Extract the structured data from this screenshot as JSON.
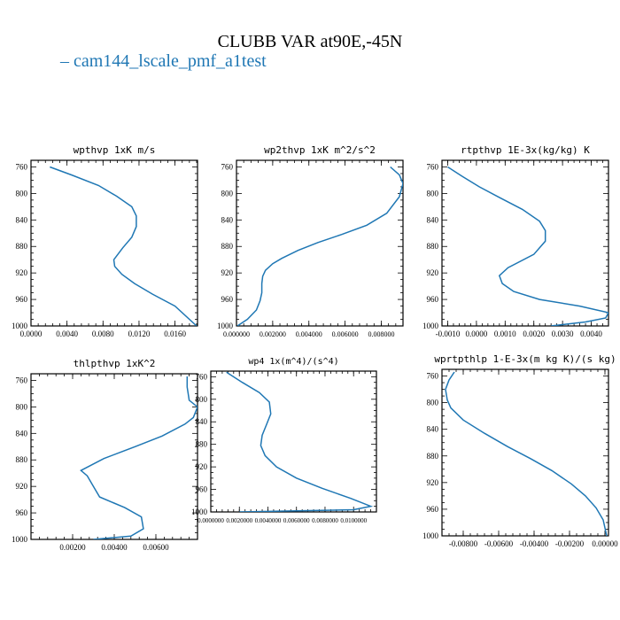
{
  "figure": {
    "title": "CLUBB VAR at90E,-45N",
    "line_color": "#1f77b4",
    "legend": {
      "dash": "–",
      "label": "cam144_lscale_pmf_a1test"
    }
  },
  "chart_data": [
    {
      "type": "line",
      "title": "wpthvp   1xK m/s",
      "xlim": [
        0,
        0.0185
      ],
      "ylim": [
        1000,
        750
      ],
      "xticks": [
        0,
        0.004,
        0.008,
        0.012,
        0.016
      ],
      "xticklabels": [
        "0.0000",
        "0.0040",
        "0.0080",
        "0.0120",
        "0.0160"
      ],
      "yticks": [
        760,
        800,
        840,
        880,
        920,
        960,
        1000
      ],
      "yticklabels": [
        "760",
        "800",
        "840",
        "880",
        "920",
        "960",
        "1000"
      ],
      "series": [
        {
          "x": [
            0.0021,
            0.0045,
            0.0075,
            0.0095,
            0.0112,
            0.0117,
            0.0117,
            0.0112,
            0.0102,
            0.0092,
            0.0093,
            0.0101,
            0.0115,
            0.0135,
            0.016,
            0.0184
          ],
          "y": [
            760,
            772,
            788,
            804,
            820,
            834,
            850,
            866,
            882,
            900,
            910,
            922,
            936,
            952,
            970,
            1000
          ]
        }
      ]
    },
    {
      "type": "line",
      "title": "wp2thvp   1xK m^2/s^2",
      "xlim": [
        0,
        0.0092
      ],
      "ylim": [
        1000,
        750
      ],
      "xticks": [
        0,
        0.002,
        0.004,
        0.006,
        0.008
      ],
      "xticklabels": [
        "0.000000",
        "0.002000",
        "0.004000",
        "0.006000",
        "0.008000"
      ],
      "yticks": [
        760,
        800,
        840,
        880,
        920,
        960,
        1000
      ],
      "yticklabels": [
        "760",
        "800",
        "840",
        "880",
        "920",
        "960",
        "1000"
      ],
      "series": [
        {
          "x": [
            0.0085,
            0.009,
            0.0092,
            0.009,
            0.0083,
            0.0072,
            0.0058,
            0.0045,
            0.0034,
            0.0025,
            0.002,
            0.0016,
            0.00145,
            0.0014,
            0.0014,
            0.0013,
            0.0011,
            0.0006,
            5e-05
          ],
          "y": [
            760,
            772,
            785,
            805,
            830,
            848,
            862,
            874,
            886,
            898,
            906,
            916,
            925,
            936,
            950,
            962,
            976,
            990,
            1000
          ]
        }
      ]
    },
    {
      "type": "line",
      "title": "rtpthvp   1E-3x(kg/kg) K",
      "xlim": [
        -0.0012,
        0.0046
      ],
      "ylim": [
        1000,
        750
      ],
      "xticks": [
        -0.001,
        0,
        0.001,
        0.002,
        0.003,
        0.004
      ],
      "xticklabels": [
        "-0.0010",
        "0.0000",
        "0.0010",
        "0.0020",
        "0.0030",
        "0.0040"
      ],
      "yticks": [
        760,
        800,
        840,
        880,
        920,
        960,
        1000
      ],
      "yticklabels": [
        "760",
        "800",
        "840",
        "880",
        "920",
        "960",
        "1000"
      ],
      "series": [
        {
          "x": [
            -0.001,
            -0.0005,
            0.0001,
            0.0008,
            0.0016,
            0.0022,
            0.0024,
            0.0024,
            0.002,
            0.0011,
            0.0008,
            0.0009,
            0.0013,
            0.0022,
            0.0036,
            0.0046,
            0.0045,
            0.0038,
            0.0026
          ],
          "y": [
            760,
            774,
            790,
            806,
            824,
            842,
            856,
            872,
            892,
            912,
            924,
            936,
            948,
            960,
            970,
            980,
            988,
            994,
            1000
          ]
        }
      ]
    },
    {
      "type": "line",
      "title": "thlpthvp   1xK^2",
      "xlim": [
        0,
        0.008
      ],
      "ylim": [
        1000,
        750
      ],
      "xticks": [
        0.002,
        0.004,
        0.006
      ],
      "xticklabels": [
        "0.00200",
        "0.00400",
        "0.00600"
      ],
      "yticks": [
        760,
        800,
        840,
        880,
        920,
        960,
        1000
      ],
      "yticklabels": [
        "760",
        "800",
        "840",
        "880",
        "920",
        "960",
        "1000"
      ],
      "series": [
        {
          "x": [
            0.0075,
            0.0075,
            0.0076,
            0.008,
            0.0078,
            0.0074,
            0.0063,
            0.005,
            0.0035,
            0.0024,
            0.0027,
            0.003,
            0.0033,
            0.0045,
            0.0053,
            0.0054,
            0.0048,
            0.003
          ],
          "y": [
            754,
            770,
            790,
            800,
            816,
            826,
            844,
            860,
            878,
            896,
            904,
            920,
            936,
            952,
            966,
            984,
            995,
            1000
          ]
        }
      ]
    },
    {
      "type": "line",
      "title": "wp4   1x(m^4)/(s^4)",
      "xlim": [
        0,
        0.0116
      ],
      "ylim": [
        1000,
        750
      ],
      "xticks": [
        0,
        0.002,
        0.004,
        0.006,
        0.008,
        0.01
      ],
      "xticklabels": [
        "0.0000000",
        "0.0020000",
        "0.0040000",
        "0.0060000",
        "0.0080000",
        "0.0100000"
      ],
      "yticks": [
        760,
        800,
        840,
        880,
        920,
        960,
        1000
      ],
      "yticklabels": [
        "760",
        "800",
        "840",
        "880",
        "920",
        "960",
        "1000"
      ],
      "series": [
        {
          "x": [
            0.0011,
            0.0022,
            0.0034,
            0.0041,
            0.0042,
            0.0039,
            0.0036,
            0.0035,
            0.0038,
            0.0046,
            0.006,
            0.0078,
            0.0098,
            0.0112,
            0.01,
            0.006,
            0.002
          ],
          "y": [
            752,
            770,
            788,
            805,
            826,
            845,
            864,
            882,
            900,
            920,
            940,
            958,
            976,
            990,
            996,
            998,
            1000
          ]
        }
      ]
    },
    {
      "type": "line",
      "title": "wprtpthlp   1-E-3x(m kg K)/(s kg)",
      "xlim": [
        -0.0092,
        0.0002
      ],
      "ylim": [
        1000,
        750
      ],
      "xticks": [
        -0.008,
        -0.006,
        -0.004,
        -0.002,
        0
      ],
      "xticklabels": [
        "-0.00800",
        "-0.00600",
        "-0.00400",
        "-0.00200",
        "0.00000"
      ],
      "yticks": [
        760,
        800,
        840,
        880,
        920,
        960,
        1000
      ],
      "yticklabels": [
        "760",
        "800",
        "840",
        "880",
        "920",
        "960",
        "1000"
      ],
      "series": [
        {
          "x": [
            -0.0085,
            -0.0088,
            -0.009,
            -0.0089,
            -0.0087,
            -0.008,
            -0.0068,
            -0.0055,
            -0.0042,
            -0.003,
            -0.0019,
            -0.0011,
            -0.0005,
            -0.0001,
            0.0001
          ],
          "y": [
            754,
            766,
            780,
            796,
            808,
            826,
            846,
            866,
            884,
            902,
            922,
            940,
            958,
            976,
            1000
          ]
        }
      ]
    }
  ]
}
